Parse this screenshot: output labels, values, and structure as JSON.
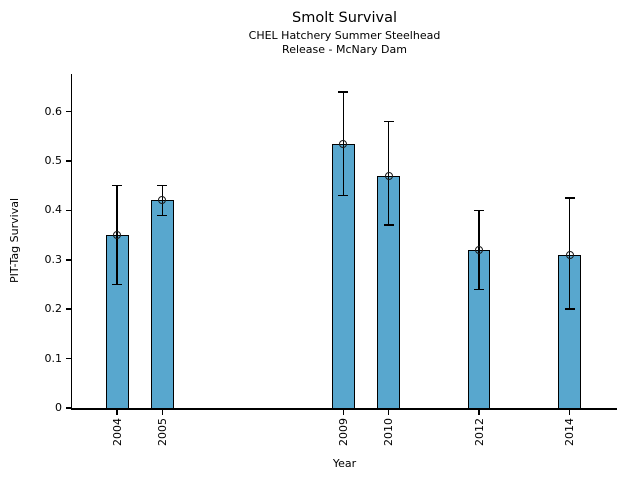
{
  "chart_data": {
    "type": "bar",
    "title": "Smolt Survival",
    "subtitle_lines": [
      "CHEL Hatchery Summer Steelhead",
      "Release - McNary Dam"
    ],
    "xlabel": "Year",
    "ylabel": "PIT-Tag Survival",
    "categories": [
      "2004",
      "2005",
      "2009",
      "2010",
      "2012",
      "2014"
    ],
    "series": [
      {
        "name": "PIT-Tag Survival",
        "values": [
          0.35,
          0.42,
          0.535,
          0.47,
          0.32,
          0.31
        ],
        "error_low": [
          0.25,
          0.39,
          0.43,
          0.37,
          0.24,
          0.2
        ],
        "error_high": [
          0.45,
          0.45,
          0.64,
          0.58,
          0.4,
          0.425
        ]
      }
    ],
    "x_numeric": [
      2004,
      2005,
      2009,
      2010,
      2012,
      2014
    ],
    "xlim": [
      2003,
      2015.05
    ],
    "ylim": [
      0,
      0.676
    ],
    "yticks": [
      0,
      0.1,
      0.2,
      0.3,
      0.4,
      0.5,
      0.6
    ],
    "ytick_labels": [
      "0",
      "0.1",
      "0.2",
      "0.3",
      "0.4",
      "0.5",
      "0.6"
    ],
    "grid": false,
    "legend_position": "none",
    "bar_width_years": 0.5,
    "colors": {
      "bar_fill": "#58A7CE",
      "bar_edge": "#000000",
      "error_bar": "#000000",
      "marker_edge": "#1a1a1a",
      "text": "#000000",
      "background": "#ffffff"
    }
  }
}
